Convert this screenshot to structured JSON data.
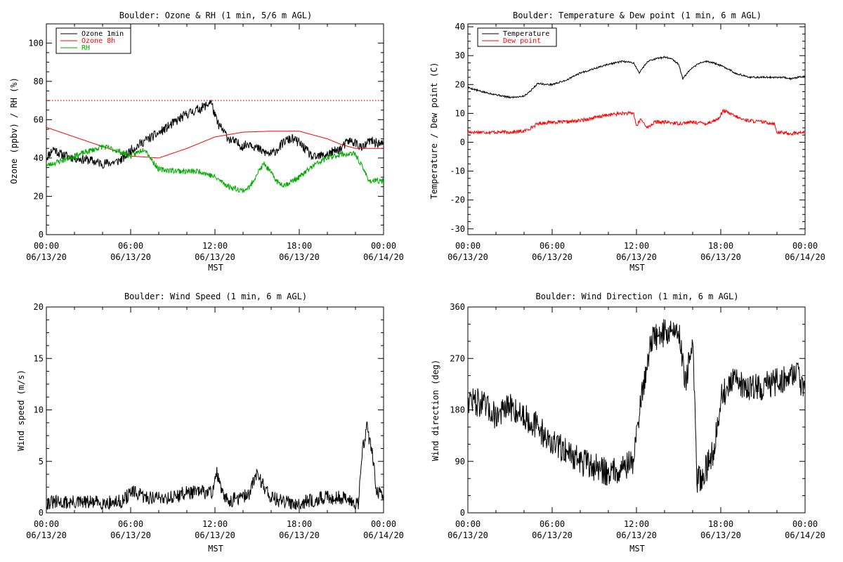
{
  "chart_data": [
    {
      "type": "line",
      "title": "Boulder: Ozone & RH (1 min, 5/6 m AGL)",
      "xlabel": "MST",
      "ylabel": "Ozone (ppbv) / RH (%)",
      "x_ticks": [
        {
          "t": 0,
          "time": "00:00",
          "date": "06/13/20"
        },
        {
          "t": 6,
          "time": "06:00",
          "date": "06/13/20"
        },
        {
          "t": 12,
          "time": "12:00",
          "date": "06/13/20"
        },
        {
          "t": 18,
          "time": "18:00",
          "date": "06/13/20"
        },
        {
          "t": 24,
          "time": "00:00",
          "date": "06/14/20"
        }
      ],
      "xlim": [
        0,
        24
      ],
      "ylim": [
        0,
        110
      ],
      "y_ticks": [
        0,
        20,
        40,
        60,
        80,
        100
      ],
      "legend": "top-left",
      "reference_lines": [
        {
          "y": 70,
          "color": "#ff0000",
          "style": "dotted"
        }
      ],
      "series": [
        {
          "name": "Ozone 1min",
          "color": "#000000",
          "noise": 2.5,
          "seed": 11,
          "x": [
            0,
            0.5,
            1,
            2,
            3,
            3.5,
            4,
            5,
            5.5,
            6,
            7,
            8,
            9,
            10,
            11,
            11.5,
            11.7,
            12,
            12.2,
            12.5,
            13,
            14,
            14.5,
            15,
            15.5,
            16,
            16.5,
            17,
            17.5,
            18,
            19,
            20,
            21,
            21.5,
            22,
            22.5,
            23,
            24
          ],
          "y": [
            40,
            45,
            42,
            40,
            39,
            38,
            37,
            38,
            40,
            44,
            49,
            53,
            58,
            63,
            66,
            68,
            70,
            62,
            58,
            55,
            50,
            46,
            48,
            45,
            43,
            42,
            45,
            49,
            50,
            48,
            40,
            42,
            45,
            49,
            48,
            45,
            49,
            47
          ]
        },
        {
          "name": "Ozone 8h",
          "color": "#ff0000",
          "noise": 0,
          "seed": 0,
          "x": [
            0,
            2,
            4,
            6,
            8,
            10,
            12,
            14,
            16,
            18,
            20,
            21,
            22,
            24
          ],
          "y": [
            56,
            51,
            46,
            41,
            40,
            45,
            51,
            53.5,
            54,
            54,
            50,
            47,
            45,
            45
          ]
        },
        {
          "name": "RH",
          "color": "#00aa00",
          "noise": 1.5,
          "seed": 23,
          "x": [
            0,
            2,
            4,
            5,
            6,
            7,
            7.5,
            8,
            10,
            11,
            12,
            13,
            14,
            14.5,
            15,
            15.5,
            16,
            16.5,
            17,
            18,
            19,
            20,
            21,
            22,
            22.5,
            23,
            24
          ],
          "y": [
            36,
            41,
            46,
            44,
            41,
            45,
            39,
            34,
            33,
            33,
            30,
            25,
            23,
            25,
            32,
            37,
            32,
            27,
            26,
            30,
            36,
            40,
            42,
            42,
            35,
            28,
            28
          ]
        }
      ]
    },
    {
      "type": "line",
      "title": "Boulder: Temperature & Dew point (1 min, 6 m AGL)",
      "xlabel": "MST",
      "ylabel": "Temperature / Dew point (C)",
      "x_ticks": [
        {
          "t": 0,
          "time": "00:00",
          "date": "06/13/20"
        },
        {
          "t": 6,
          "time": "06:00",
          "date": "06/13/20"
        },
        {
          "t": 12,
          "time": "12:00",
          "date": "06/13/20"
        },
        {
          "t": 18,
          "time": "18:00",
          "date": "06/13/20"
        },
        {
          "t": 24,
          "time": "00:00",
          "date": "06/14/20"
        }
      ],
      "xlim": [
        0,
        24
      ],
      "ylim": [
        -32,
        41
      ],
      "y_ticks": [
        -30,
        -20,
        -10,
        0,
        10,
        20,
        30,
        40
      ],
      "legend": "top-left",
      "series": [
        {
          "name": "Temperature",
          "color": "#000000",
          "noise": 0.3,
          "seed": 5,
          "x": [
            0,
            1,
            2,
            3,
            4,
            4.5,
            5,
            5.5,
            6,
            7,
            8,
            9,
            10,
            11,
            11.8,
            12.2,
            12.7,
            13,
            13.5,
            14,
            14.5,
            15,
            15.3,
            15.8,
            16.5,
            17,
            17.5,
            18,
            18.5,
            19,
            20,
            21,
            22,
            22.5,
            23,
            24
          ],
          "y": [
            19,
            17.5,
            16.5,
            15.5,
            16,
            18,
            20.5,
            20,
            20,
            21.5,
            24,
            25.5,
            27,
            28,
            27.5,
            24,
            27.5,
            28.5,
            29,
            29.5,
            29,
            27,
            22,
            25,
            27.5,
            28,
            27.5,
            26.5,
            25.5,
            24,
            22.5,
            22.5,
            22.5,
            22.5,
            22,
            23
          ]
        },
        {
          "name": "Dew point",
          "color": "#ff0000",
          "noise": 0.6,
          "seed": 17,
          "x": [
            0,
            1,
            2,
            3,
            4,
            4.5,
            5,
            6,
            7,
            8,
            9,
            10,
            11,
            11.8,
            12,
            12.3,
            12.8,
            13.3,
            14,
            15,
            16,
            17,
            17.8,
            18.2,
            18.8,
            19.5,
            20,
            21,
            21.8,
            22,
            23,
            24
          ],
          "y": [
            3.5,
            3.5,
            3.5,
            3.5,
            3.8,
            5,
            6.5,
            7,
            7,
            7.5,
            8.5,
            9.5,
            10,
            10,
            5.5,
            8,
            5,
            7,
            7,
            6.5,
            7,
            6.5,
            8,
            11,
            9.5,
            8,
            7.5,
            7,
            6.5,
            3.5,
            3,
            3.5
          ]
        }
      ]
    },
    {
      "type": "line",
      "title": "Boulder: Wind Speed (1 min, 6 m AGL)",
      "xlabel": "MST",
      "ylabel": "Wind speed (m/s)",
      "x_ticks": [
        {
          "t": 0,
          "time": "00:00",
          "date": "06/13/20"
        },
        {
          "t": 6,
          "time": "06:00",
          "date": "06/13/20"
        },
        {
          "t": 12,
          "time": "12:00",
          "date": "06/13/20"
        },
        {
          "t": 18,
          "time": "18:00",
          "date": "06/13/20"
        },
        {
          "t": 24,
          "time": "00:00",
          "date": "06/14/20"
        }
      ],
      "xlim": [
        0,
        24
      ],
      "ylim": [
        0,
        20
      ],
      "y_ticks": [
        0,
        5,
        10,
        15,
        20
      ],
      "series": [
        {
          "name": "",
          "color": "#000000",
          "noise": 0.7,
          "seed": 31,
          "x": [
            0,
            2,
            4,
            5,
            5.5,
            6,
            6.5,
            7,
            8,
            9,
            10,
            11,
            11.8,
            12.1,
            12.3,
            12.6,
            13,
            14,
            14.5,
            15,
            15.3,
            16,
            17,
            18,
            19,
            20,
            21,
            22,
            22.2,
            22.5,
            22.8,
            23,
            23.2,
            23.5,
            24
          ],
          "y": [
            1,
            1,
            1,
            1,
            1.2,
            2,
            1.8,
            1.5,
            1.5,
            1.5,
            2,
            2,
            2,
            4,
            3,
            1.5,
            1.2,
            1.5,
            2,
            4,
            3,
            1.5,
            1,
            1,
            1.2,
            1.5,
            1.5,
            1,
            1,
            6,
            8.5,
            7,
            6,
            2,
            1.5
          ]
        }
      ]
    },
    {
      "type": "line",
      "title": "Boulder: Wind Direction (1 min, 6 m AGL)",
      "xlabel": "MST",
      "ylabel": "Wind direction (deg)",
      "x_ticks": [
        {
          "t": 0,
          "time": "00:00",
          "date": "06/13/20"
        },
        {
          "t": 6,
          "time": "06:00",
          "date": "06/13/20"
        },
        {
          "t": 12,
          "time": "12:00",
          "date": "06/13/20"
        },
        {
          "t": 18,
          "time": "18:00",
          "date": "06/13/20"
        },
        {
          "t": 24,
          "time": "00:00",
          "date": "06/14/20"
        }
      ],
      "xlim": [
        0,
        24
      ],
      "ylim": [
        0,
        360
      ],
      "y_ticks": [
        0,
        90,
        180,
        270,
        360
      ],
      "series": [
        {
          "name": "",
          "color": "#000000",
          "noise": 25,
          "seed": 47,
          "x": [
            0,
            1,
            2,
            3,
            4,
            5,
            6,
            7,
            8,
            9,
            10,
            11,
            11.8,
            12.2,
            12.5,
            13,
            13.5,
            14,
            15,
            15.5,
            16,
            16.3,
            16.6,
            17,
            17.5,
            18,
            18.5,
            19,
            20,
            21,
            22,
            23,
            23.5,
            24
          ],
          "y": [
            200,
            190,
            170,
            185,
            170,
            150,
            120,
            110,
            90,
            80,
            70,
            80,
            90,
            180,
            220,
            300,
            310,
            315,
            320,
            230,
            300,
            60,
            60,
            80,
            110,
            200,
            220,
            230,
            220,
            220,
            230,
            240,
            250,
            200
          ]
        }
      ]
    }
  ]
}
